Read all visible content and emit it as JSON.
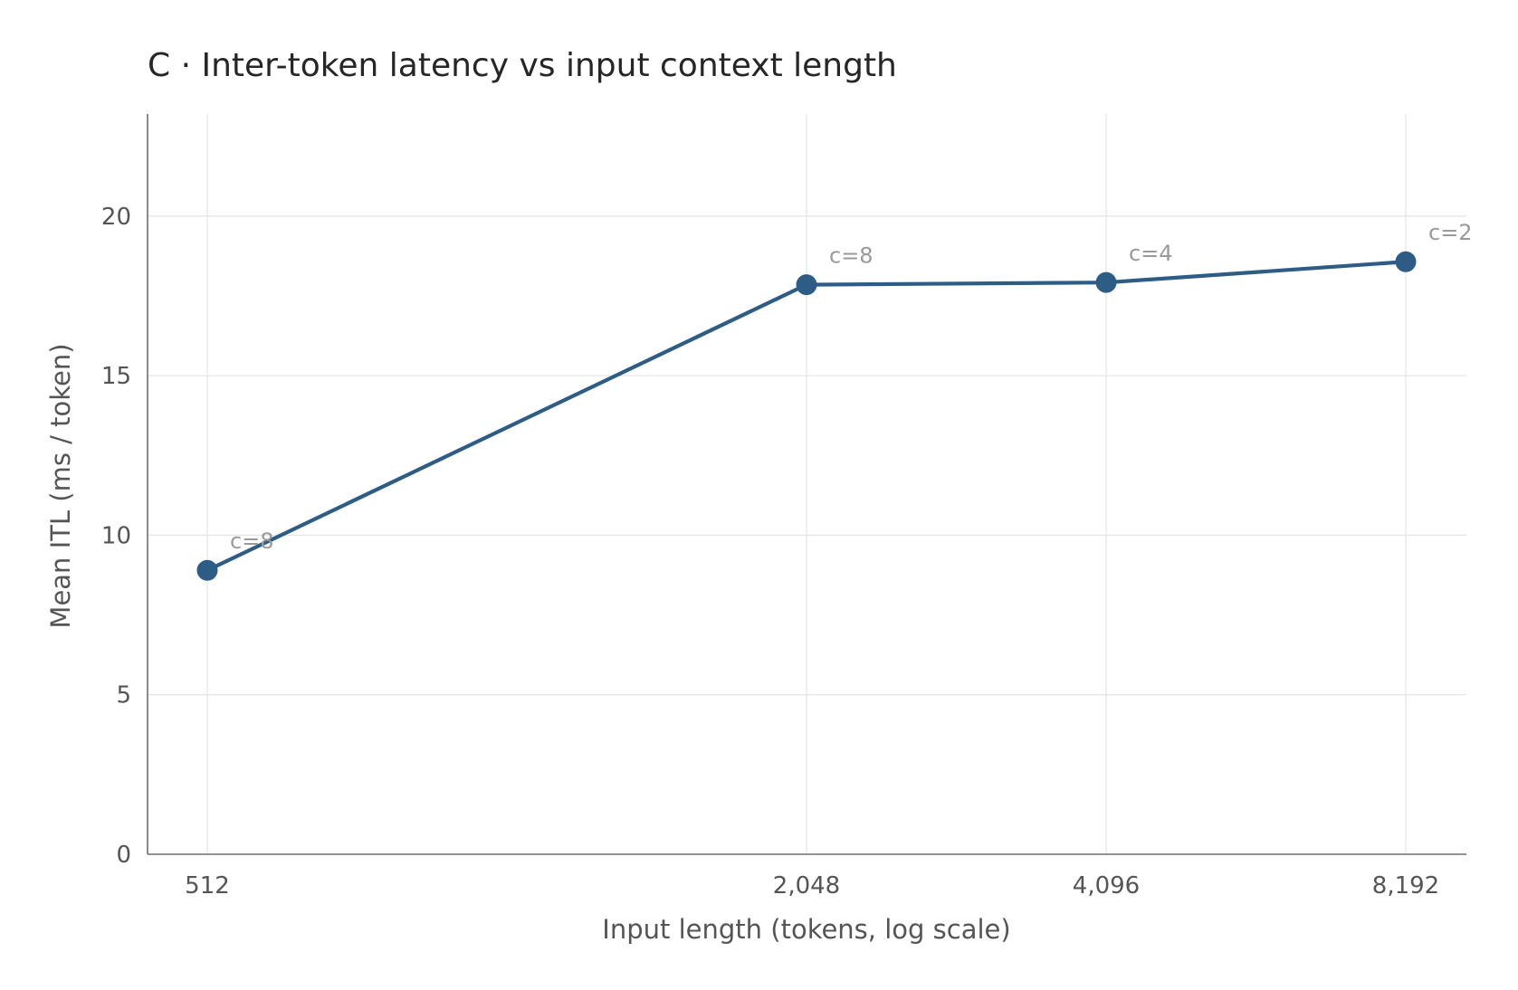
{
  "chart_data": {
    "type": "line",
    "title": "C · Inter-token latency vs input context length",
    "xlabel": "Input length (tokens, log scale)",
    "ylabel": "Mean ITL (ms / token)",
    "x_scale": "log2",
    "x": [
      512,
      2048,
      4096,
      8192
    ],
    "x_tick_labels": [
      "512",
      "2,048",
      "4,096",
      "8,192"
    ],
    "ylim": [
      0,
      23.2
    ],
    "y_ticks": [
      0,
      5,
      10,
      15,
      20
    ],
    "y_tick_labels": [
      "0",
      "5",
      "10",
      "15",
      "20"
    ],
    "grid": true,
    "legend": false,
    "series": [
      {
        "values": [
          8.9,
          17.85,
          17.92,
          18.57
        ],
        "point_labels": [
          "c=8",
          "c=8",
          "c=4",
          "c=2"
        ],
        "color": "#2d5d87"
      }
    ]
  }
}
